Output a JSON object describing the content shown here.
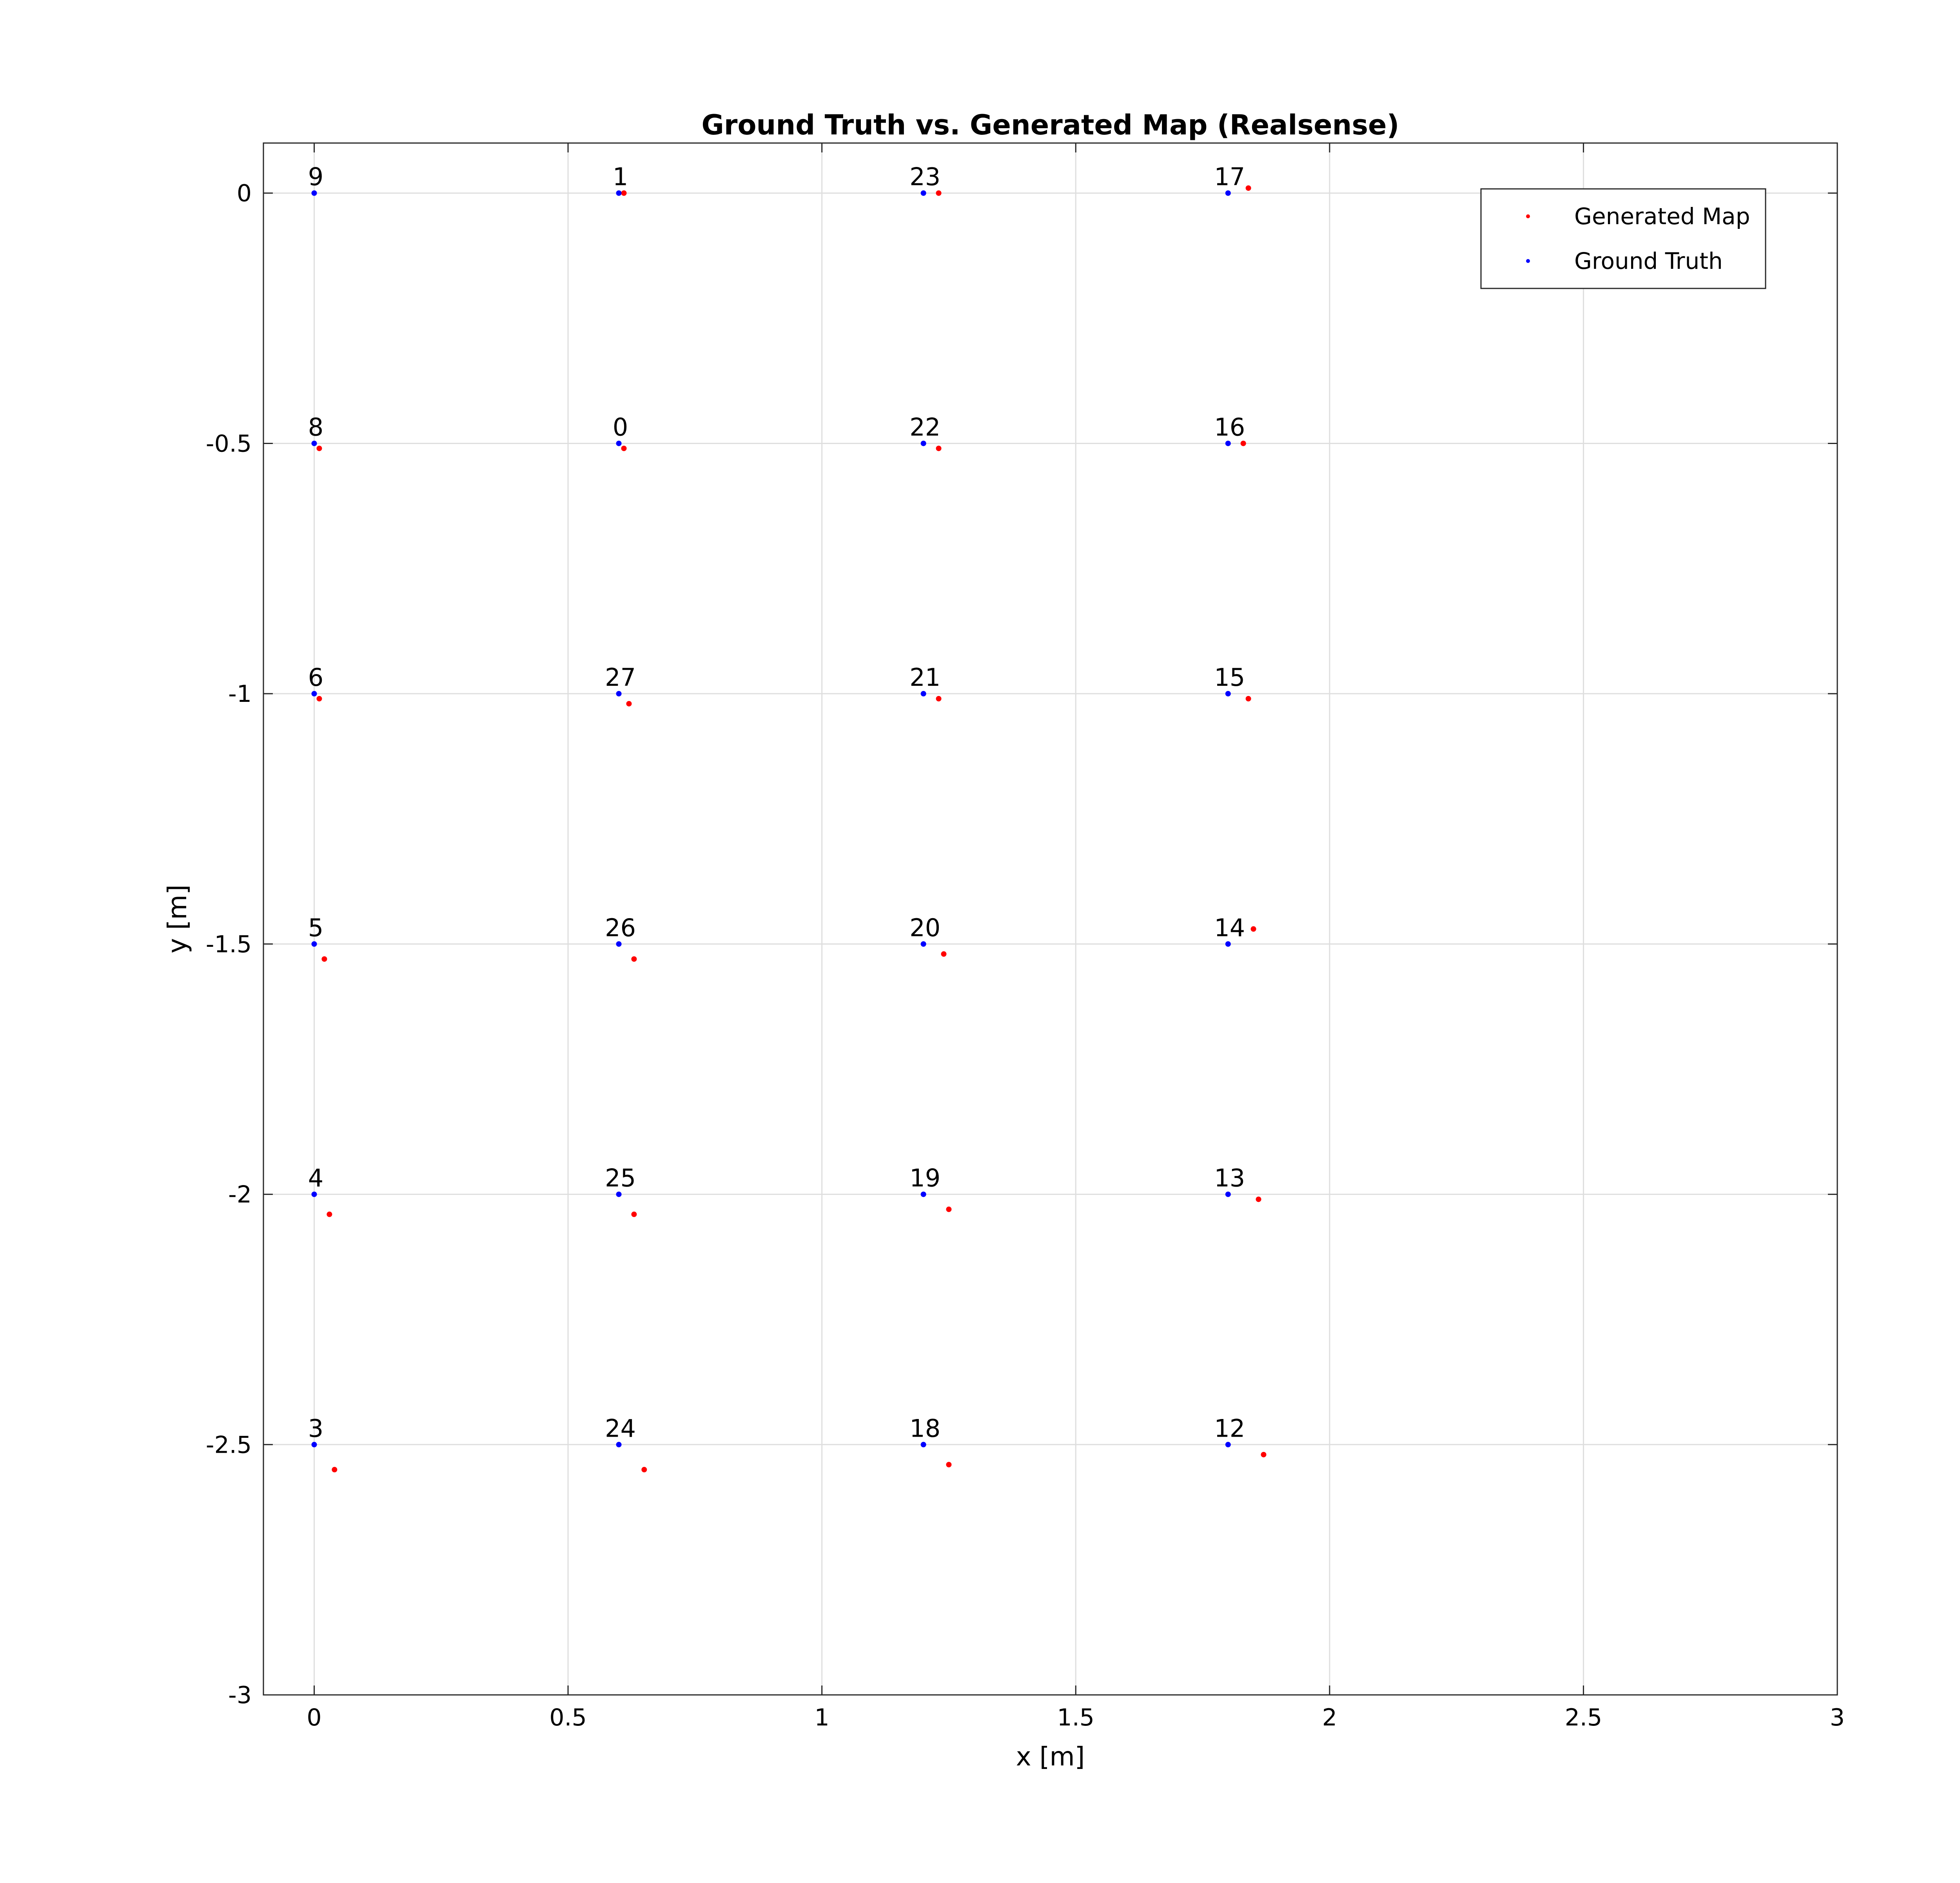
{
  "chart_data": {
    "type": "scatter",
    "title": "Ground Truth vs. Generated Map (Realsense)",
    "xlabel": "x [m]",
    "ylabel": "y [m]",
    "xlim": [
      -0.1,
      3
    ],
    "ylim": [
      -3,
      0.1
    ],
    "xticks": [
      0,
      0.5,
      1,
      1.5,
      2,
      2.5,
      3
    ],
    "yticks": [
      0,
      -0.5,
      -1,
      -1.5,
      -2,
      -2.5,
      -3
    ],
    "xtick_labels": [
      "0",
      "0.5",
      "1",
      "1.5",
      "2",
      "2.5",
      "3"
    ],
    "ytick_labels": [
      "0",
      "-0.5",
      "-1",
      "-1.5",
      "-2",
      "-2.5",
      "-3"
    ],
    "grid": true,
    "legend_position": "top-right",
    "series": [
      {
        "name": "Generated Map",
        "color": "#ff0000",
        "points": [
          {
            "x": 0.61,
            "y": -0.51
          },
          {
            "x": 0.61,
            "y": 0.0
          },
          {
            "x": 0.04,
            "y": -2.55
          },
          {
            "x": 0.03,
            "y": -2.04
          },
          {
            "x": 0.02,
            "y": -1.53
          },
          {
            "x": 0.01,
            "y": -1.01
          },
          {
            "x": 0.01,
            "y": -0.51
          },
          {
            "x": 1.87,
            "y": -2.52
          },
          {
            "x": 1.86,
            "y": -2.01
          },
          {
            "x": 1.85,
            "y": -1.47
          },
          {
            "x": 1.84,
            "y": -1.01
          },
          {
            "x": 1.83,
            "y": -0.5
          },
          {
            "x": 1.84,
            "y": 0.01
          },
          {
            "x": 1.25,
            "y": -2.54
          },
          {
            "x": 1.25,
            "y": -2.03
          },
          {
            "x": 1.24,
            "y": -1.52
          },
          {
            "x": 1.23,
            "y": -1.01
          },
          {
            "x": 1.23,
            "y": -0.51
          },
          {
            "x": 1.23,
            "y": 0.0
          },
          {
            "x": 0.65,
            "y": -2.55
          },
          {
            "x": 0.63,
            "y": -2.04
          },
          {
            "x": 0.63,
            "y": -1.53
          },
          {
            "x": 0.62,
            "y": -1.02
          }
        ]
      },
      {
        "name": "Ground Truth",
        "color": "#0000ff",
        "points": [
          {
            "x": 0,
            "y": 0,
            "label": "9"
          },
          {
            "x": 0.6,
            "y": 0,
            "label": "1"
          },
          {
            "x": 1.2,
            "y": 0,
            "label": "23"
          },
          {
            "x": 1.8,
            "y": 0,
            "label": "17"
          },
          {
            "x": 0,
            "y": -0.5,
            "label": "8"
          },
          {
            "x": 0.6,
            "y": -0.5,
            "label": "0"
          },
          {
            "x": 1.2,
            "y": -0.5,
            "label": "22"
          },
          {
            "x": 1.8,
            "y": -0.5,
            "label": "16"
          },
          {
            "x": 0,
            "y": -1,
            "label": "6"
          },
          {
            "x": 0.6,
            "y": -1,
            "label": "27"
          },
          {
            "x": 1.2,
            "y": -1,
            "label": "21"
          },
          {
            "x": 1.8,
            "y": -1,
            "label": "15"
          },
          {
            "x": 0,
            "y": -1.5,
            "label": "5"
          },
          {
            "x": 0.6,
            "y": -1.5,
            "label": "26"
          },
          {
            "x": 1.2,
            "y": -1.5,
            "label": "20"
          },
          {
            "x": 1.8,
            "y": -1.5,
            "label": "14"
          },
          {
            "x": 0,
            "y": -2,
            "label": "4"
          },
          {
            "x": 0.6,
            "y": -2,
            "label": "25"
          },
          {
            "x": 1.2,
            "y": -2,
            "label": "19"
          },
          {
            "x": 1.8,
            "y": -2,
            "label": "13"
          },
          {
            "x": 0,
            "y": -2.5,
            "label": "3"
          },
          {
            "x": 0.6,
            "y": -2.5,
            "label": "24"
          },
          {
            "x": 1.2,
            "y": -2.5,
            "label": "18"
          },
          {
            "x": 1.8,
            "y": -2.5,
            "label": "12"
          }
        ]
      }
    ]
  }
}
